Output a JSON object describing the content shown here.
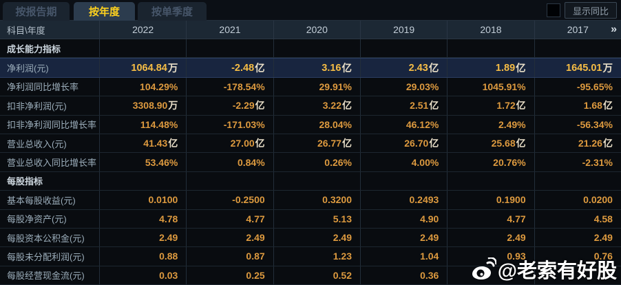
{
  "tabs": [
    {
      "label": "按报告期",
      "active": false
    },
    {
      "label": "按年度",
      "active": true
    },
    {
      "label": "按单季度",
      "active": false
    }
  ],
  "controls": {
    "show_yoy_label": "显示同比",
    "checkbox_checked": false
  },
  "table": {
    "corner_header": "科目\\年度",
    "year_columns": [
      "2022",
      "2021",
      "2020",
      "2019",
      "2018",
      "2017"
    ],
    "more_columns_glyph": "»",
    "rows": [
      {
        "type": "section",
        "label": "成长能力指标",
        "values": [
          "",
          "",
          "",
          "",
          "",
          ""
        ]
      },
      {
        "type": "highlight",
        "label": "净利润(元)",
        "values": [
          "1064.84万",
          "-2.48亿",
          "3.16亿",
          "2.43亿",
          "1.89亿",
          "1645.01万"
        ]
      },
      {
        "type": "data",
        "label": "净利润同比增长率",
        "values": [
          "104.29%",
          "-178.54%",
          "29.91%",
          "29.03%",
          "1045.91%",
          "-95.65%"
        ]
      },
      {
        "type": "data",
        "label": "扣非净利润(元)",
        "values": [
          "3308.90万",
          "-2.29亿",
          "3.22亿",
          "2.51亿",
          "1.72亿",
          "1.68亿"
        ]
      },
      {
        "type": "data",
        "label": "扣非净利润同比增长率",
        "values": [
          "114.48%",
          "-171.03%",
          "28.04%",
          "46.12%",
          "2.49%",
          "-56.34%"
        ]
      },
      {
        "type": "data",
        "label": "营业总收入(元)",
        "values": [
          "41.43亿",
          "27.00亿",
          "26.77亿",
          "26.70亿",
          "25.68亿",
          "21.26亿"
        ]
      },
      {
        "type": "data",
        "label": "营业总收入同比增长率",
        "values": [
          "53.46%",
          "0.84%",
          "0.26%",
          "4.00%",
          "20.76%",
          "-2.31%"
        ]
      },
      {
        "type": "section",
        "label": "每股指标",
        "values": [
          "",
          "",
          "",
          "",
          "",
          ""
        ]
      },
      {
        "type": "data",
        "label": "基本每股收益(元)",
        "values": [
          "0.0100",
          "-0.2500",
          "0.3200",
          "0.2493",
          "0.1900",
          "0.0200"
        ]
      },
      {
        "type": "data",
        "label": "每股净资产(元)",
        "values": [
          "4.78",
          "4.77",
          "5.13",
          "4.90",
          "4.77",
          "4.58"
        ]
      },
      {
        "type": "data",
        "label": "每股资本公积金(元)",
        "values": [
          "2.49",
          "2.49",
          "2.49",
          "2.49",
          "2.49",
          "2.49"
        ]
      },
      {
        "type": "data",
        "label": "每股未分配利润(元)",
        "values": [
          "0.88",
          "0.87",
          "1.23",
          "1.04",
          "0.93",
          "0.76"
        ]
      },
      {
        "type": "data",
        "label": "每股经营现金流(元)",
        "values": [
          "0.03",
          "0.25",
          "0.52",
          "0.36",
          "",
          ""
        ]
      }
    ]
  },
  "watermark": {
    "text": "@老索有好股"
  },
  "colors": {
    "tab_active_text": "#ffd21e",
    "value_gold": "#dd9a3f",
    "highlight_row_bg": "#18253f",
    "header_row_bg": "#1c2834",
    "page_bg": "#07090d"
  }
}
